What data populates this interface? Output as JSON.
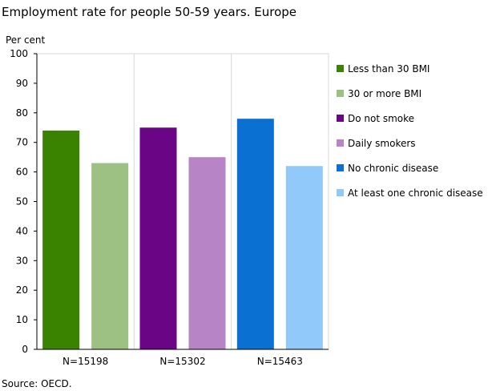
{
  "chart_data": {
    "type": "bar",
    "title": "Employment rate for people 50-59 years. Europe",
    "ylabel": "Per cent",
    "ylim": [
      0,
      100
    ],
    "yticks": [
      0,
      10,
      20,
      30,
      40,
      50,
      60,
      70,
      80,
      90,
      100
    ],
    "categories": [
      "N=15198",
      "N=15302",
      "N=15463"
    ],
    "series": [
      {
        "name": "Less than 30 BMI",
        "color": "#3a8300",
        "values": [
          74,
          null,
          null
        ]
      },
      {
        "name": "30 or more BMI",
        "color": "#9dc183",
        "values": [
          63,
          null,
          null
        ]
      },
      {
        "name": "Do not smoke",
        "color": "#6a0585",
        "values": [
          null,
          75,
          null
        ]
      },
      {
        "name": "Daily smokers",
        "color": "#b784c6",
        "values": [
          null,
          65,
          null
        ]
      },
      {
        "name": "No chronic disease",
        "color": "#0a70d2",
        "values": [
          null,
          null,
          78
        ]
      },
      {
        "name": "At least one chronic disease",
        "color": "#91c9fb",
        "values": [
          null,
          null,
          62
        ]
      }
    ],
    "grid": "vertical",
    "legend": "right"
  },
  "source": "Source: OECD."
}
